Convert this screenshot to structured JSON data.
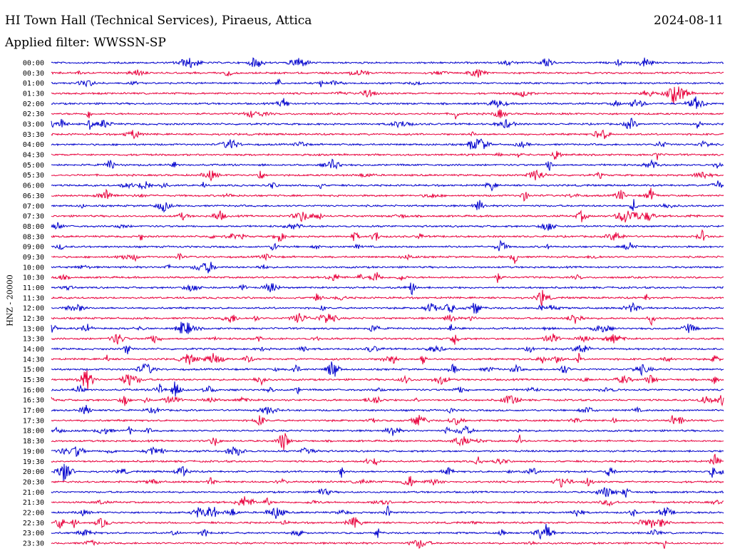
{
  "header": {
    "station": "HI Town Hall (Technical Services), Piraeus, Attica",
    "date": "2024-08-11",
    "filter": "Applied filter: WWSSN-SP",
    "channel_label": "HNZ - 20000"
  },
  "chart_data": {
    "type": "line",
    "title": "HI Town Hall (Technical Services), Piraeus, Attica",
    "ylabel": "HNZ - 20000",
    "xlabel": "",
    "categories": [
      "00:00",
      "00:30",
      "01:00",
      "01:30",
      "02:00",
      "02:30",
      "03:00",
      "03:30",
      "04:00",
      "04:30",
      "05:00",
      "05:30",
      "06:00",
      "06:30",
      "07:00",
      "07:30",
      "08:00",
      "08:30",
      "09:00",
      "09:30",
      "10:00",
      "10:30",
      "11:00",
      "11:30",
      "12:00",
      "12:30",
      "13:00",
      "13:30",
      "14:00",
      "14:30",
      "15:00",
      "15:30",
      "16:00",
      "16:30",
      "17:00",
      "17:30",
      "18:00",
      "18:30",
      "19:00",
      "19:30",
      "20:00",
      "20:30",
      "21:00",
      "21:30",
      "22:00",
      "22:30",
      "23:00",
      "23:30"
    ],
    "colors": [
      "#0000cc",
      "#e8003c"
    ],
    "grid": false,
    "legend": "none"
  }
}
